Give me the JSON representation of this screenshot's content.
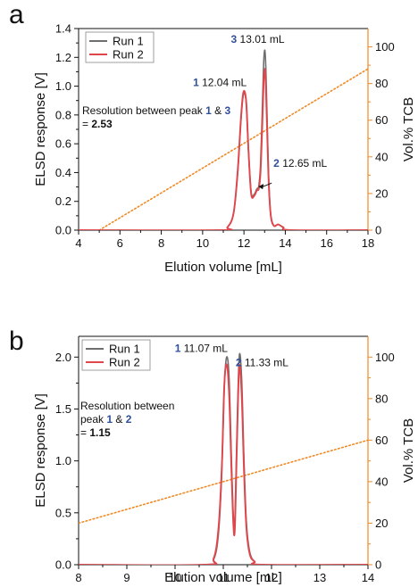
{
  "panels": [
    {
      "letter": "a",
      "chart_data": {
        "type": "line",
        "xlabel": "Elution volume [mL]",
        "ylabel": "ELSD response [V]",
        "y2label": "Vol.% TCB",
        "xlim": [
          4,
          18
        ],
        "ylim": [
          0,
          1.4
        ],
        "y2lim": [
          0,
          110
        ],
        "xticks": [
          "4",
          "6",
          "8",
          "10",
          "12",
          "14",
          "16",
          "18"
        ],
        "yticks": [
          "0.0",
          "0.2",
          "0.4",
          "0.6",
          "0.8",
          "1.0",
          "1.2",
          "1.4"
        ],
        "y2ticks": [
          "0",
          "20",
          "40",
          "60",
          "80",
          "100"
        ],
        "legend_position": "top-left",
        "series": [
          {
            "name": "Run 1",
            "color": "#6e6e6e",
            "x": [
              4.0,
              10.8,
              11.2,
              11.5,
              11.7,
              11.85,
              11.95,
              12.04,
              12.12,
              12.22,
              12.35,
              12.5,
              12.6,
              12.65,
              12.72,
              12.8,
              12.88,
              12.95,
              13.01,
              13.06,
              13.12,
              13.2,
              13.3,
              13.45,
              13.65,
              13.9,
              14.3,
              18.0
            ],
            "y": [
              0.0,
              0.0,
              0.02,
              0.12,
              0.4,
              0.75,
              0.92,
              0.95,
              0.86,
              0.55,
              0.26,
              0.25,
              0.28,
              0.29,
              0.31,
              0.45,
              0.8,
              1.15,
              1.25,
              1.12,
              0.78,
              0.35,
              0.1,
              0.03,
              0.04,
              0.02,
              0.0,
              0.0
            ]
          },
          {
            "name": "Run 2",
            "color": "#e0474c",
            "x": [
              4.0,
              10.8,
              11.2,
              11.5,
              11.7,
              11.85,
              11.95,
              12.04,
              12.12,
              12.22,
              12.35,
              12.5,
              12.6,
              12.65,
              12.72,
              12.8,
              12.88,
              12.95,
              13.01,
              13.06,
              13.12,
              13.2,
              13.3,
              13.45,
              13.65,
              13.9,
              14.3,
              18.0
            ],
            "y": [
              0.0,
              0.0,
              0.02,
              0.12,
              0.42,
              0.77,
              0.94,
              0.96,
              0.87,
              0.55,
              0.25,
              0.24,
              0.27,
              0.28,
              0.29,
              0.4,
              0.7,
              1.02,
              1.12,
              1.0,
              0.7,
              0.32,
              0.1,
              0.03,
              0.04,
              0.02,
              0.0,
              0.0
            ]
          },
          {
            "name": "",
            "axis": "right",
            "style": "dotted",
            "color": "#f08a24",
            "x": [
              5.0,
              18.0
            ],
            "y": [
              0,
              88
            ]
          }
        ],
        "peak_labels": [
          {
            "num": "1",
            "text": "12.04 mL",
            "x": 12.04,
            "y": 0.95
          },
          {
            "num": "3",
            "text": "13.01 mL",
            "x": 13.01,
            "y": 1.25
          },
          {
            "num": "2",
            "text": "12.65 mL",
            "x": 12.65,
            "y": 0.29
          }
        ],
        "resolution_note": {
          "line1": "Resolution between peak",
          "num_a": "1",
          "amp": "&",
          "num_b": "3",
          "eq": "=",
          "value": "2.53"
        }
      }
    },
    {
      "letter": "b",
      "chart_data": {
        "type": "line",
        "xlabel": "Elution volume [mL]",
        "ylabel": "ELSD response [V]",
        "y2label": "Vol.% TCB",
        "xlim": [
          8,
          14
        ],
        "ylim": [
          0,
          2.2
        ],
        "y2lim": [
          0,
          110
        ],
        "xticks": [
          "8",
          "9",
          "10",
          "11",
          "12",
          "13",
          "14"
        ],
        "yticks": [
          "0.0",
          "0.5",
          "1.0",
          "1.5",
          "2.0"
        ],
        "y2ticks": [
          "0",
          "20",
          "40",
          "60",
          "80",
          "100"
        ],
        "legend_position": "top-left",
        "series": [
          {
            "name": "Run 1",
            "color": "#6e6e6e",
            "x": [
              8.0,
              10.6,
              10.8,
              10.9,
              10.97,
              11.02,
              11.07,
              11.12,
              11.17,
              11.21,
              11.24,
              11.28,
              11.33,
              11.38,
              11.43,
              11.48,
              11.55,
              11.65,
              11.8,
              14.0
            ],
            "y": [
              0.0,
              0.0,
              0.05,
              0.3,
              0.9,
              1.7,
              2.0,
              1.8,
              1.0,
              0.45,
              0.42,
              1.2,
              2.0,
              1.8,
              1.0,
              0.4,
              0.12,
              0.03,
              0.0,
              0.0
            ]
          },
          {
            "name": "Run 2",
            "color": "#e0474c",
            "x": [
              8.0,
              10.6,
              10.8,
              10.9,
              10.97,
              11.02,
              11.07,
              11.12,
              11.17,
              11.21,
              11.24,
              11.28,
              11.33,
              11.38,
              11.43,
              11.48,
              11.55,
              11.65,
              11.8,
              14.0
            ],
            "y": [
              0.0,
              0.0,
              0.06,
              0.35,
              0.95,
              1.72,
              1.93,
              1.65,
              0.9,
              0.38,
              0.35,
              1.1,
              1.9,
              1.65,
              0.9,
              0.35,
              0.1,
              0.03,
              0.0,
              0.0
            ]
          },
          {
            "name": "",
            "axis": "right",
            "style": "dotted",
            "color": "#f08a24",
            "x": [
              8.0,
              14.0
            ],
            "y": [
              20,
              60
            ]
          }
        ],
        "peak_labels": [
          {
            "num": "1",
            "text": "11.07 mL",
            "x": 11.07,
            "y": 2.0
          },
          {
            "num": "2",
            "text": "11.33 mL",
            "x": 11.33,
            "y": 2.0
          }
        ],
        "resolution_note": {
          "line1": "Resolution between",
          "line2": "peak",
          "num_a": "1",
          "amp": "&",
          "num_b": "2",
          "eq": "=",
          "value": "1.15"
        }
      }
    }
  ]
}
